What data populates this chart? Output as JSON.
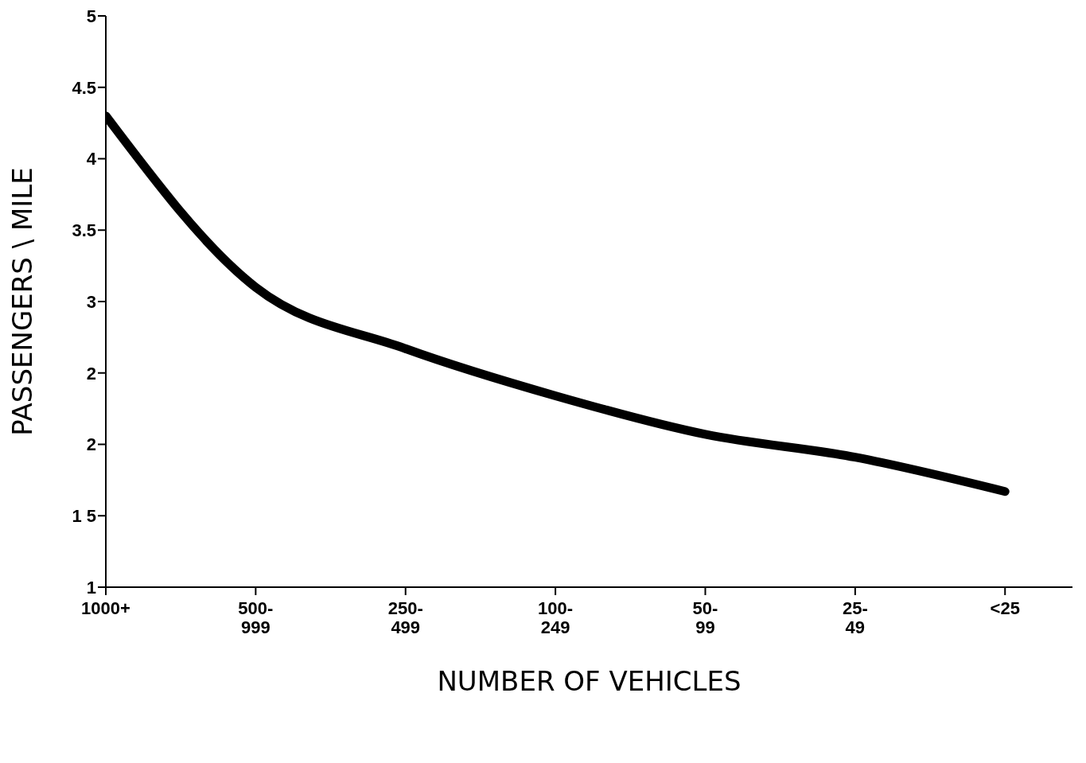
{
  "chart_data": {
    "type": "line",
    "xlabel": "NUMBER OF VEHICLES",
    "ylabel": "PASSENGERS \\ MILE",
    "categories": [
      "1000+",
      "500-\n999",
      "250-\n499",
      "100-\n249",
      "50-\n99",
      "25-\n49",
      "<25"
    ],
    "series": [
      {
        "color": "#000000",
        "values": [
          4.3,
          3.1,
          2.67,
          2.34,
          2.07,
          1.91,
          1.67
        ]
      }
    ],
    "ylim": [
      1,
      5
    ],
    "yticks": [
      1,
      {
        "value": 1.5,
        "label": "1 5"
      },
      2,
      {
        "value": 2.5,
        "label": "2"
      },
      3,
      3.5,
      4,
      4.5,
      5
    ],
    "grid": false,
    "marker": "none",
    "line_style": "solid"
  }
}
